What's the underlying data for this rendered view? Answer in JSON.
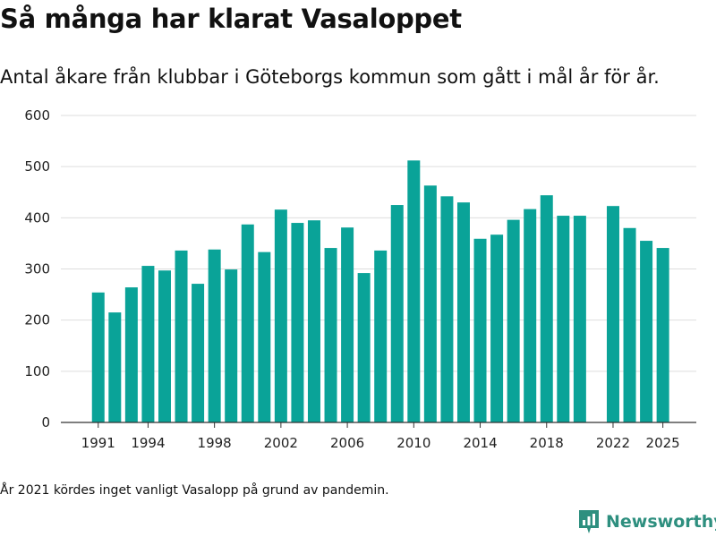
{
  "header": {
    "title": "Så många har klarat Vasaloppet",
    "subtitle": "Antal åkare från klubbar i Göteborgs kommun som gått i mål år för år."
  },
  "footnote": "År 2021 kördes inget vanligt Vasalopp på grund av pandemin.",
  "brand": {
    "label": "Newsworthy",
    "icon": "newsworthy-logo-icon",
    "color": "#2e8f7f"
  },
  "chart_data": {
    "type": "bar",
    "title": "Så många har klarat Vasaloppet",
    "subtitle": "Antal åkare från klubbar i Göteborgs kommun som gått i mål år för år.",
    "xlabel": "",
    "ylabel": "",
    "bar_color": "#0aa398",
    "grid": true,
    "ylim": [
      0,
      600
    ],
    "yticks": [
      0,
      100,
      200,
      300,
      400,
      500,
      600
    ],
    "xlim": [
      1990,
      2026
    ],
    "xticks": [
      1991,
      1994,
      1998,
      2002,
      2006,
      2010,
      2014,
      2018,
      2022,
      2025
    ],
    "x": [
      1991,
      1992,
      1993,
      1994,
      1995,
      1996,
      1997,
      1998,
      1999,
      2000,
      2001,
      2002,
      2003,
      2004,
      2005,
      2006,
      2007,
      2008,
      2009,
      2010,
      2011,
      2012,
      2013,
      2014,
      2015,
      2016,
      2017,
      2018,
      2019,
      2020,
      2022,
      2023,
      2024,
      2025
    ],
    "values": [
      254,
      215,
      264,
      306,
      297,
      336,
      271,
      338,
      299,
      387,
      333,
      416,
      390,
      395,
      341,
      381,
      292,
      336,
      425,
      512,
      463,
      442,
      430,
      359,
      367,
      396,
      417,
      444,
      404,
      404,
      423,
      380,
      355,
      341
    ]
  }
}
